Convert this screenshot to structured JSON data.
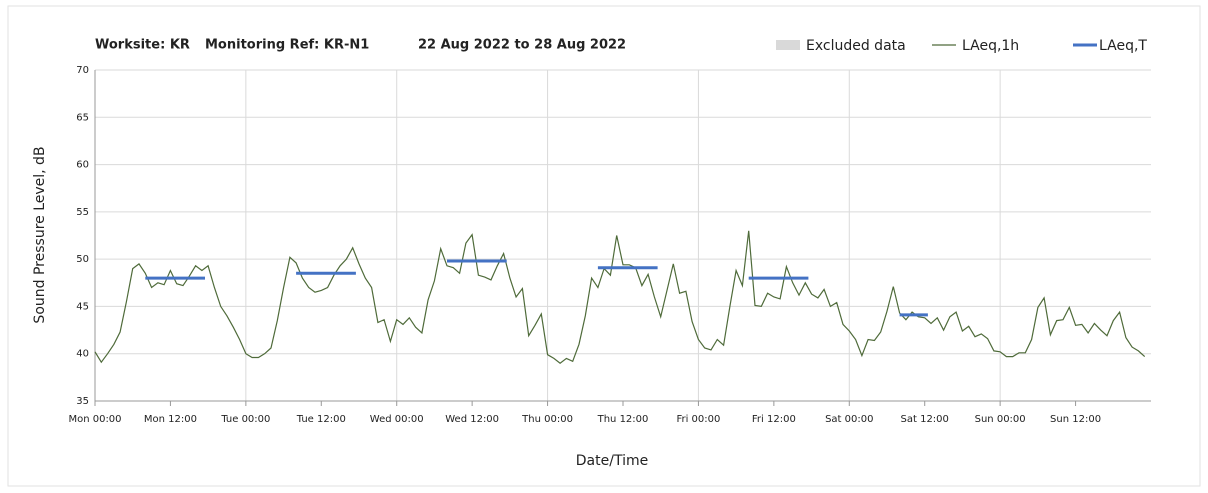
{
  "chart_data": {
    "type": "line",
    "title": [
      "Worksite: KR",
      "Monitoring Ref: KR-N1",
      "22 Aug 2022 to 28 Aug 2022"
    ],
    "ylabel": "Sound Pressure Level, dB",
    "xlabel": "Date/Time",
    "xlim": [
      0,
      168
    ],
    "ylim": [
      35,
      70
    ],
    "yticks": [
      35,
      40,
      45,
      50,
      55,
      60,
      65,
      70
    ],
    "xticks": [
      {
        "value": 0,
        "label": "Mon 00:00"
      },
      {
        "value": 12,
        "label": "Mon 12:00"
      },
      {
        "value": 24,
        "label": "Tue 00:00"
      },
      {
        "value": 36,
        "label": "Tue 12:00"
      },
      {
        "value": 48,
        "label": "Wed 00:00"
      },
      {
        "value": 60,
        "label": "Wed 12:00"
      },
      {
        "value": 72,
        "label": "Thu 00:00"
      },
      {
        "value": 84,
        "label": "Thu 12:00"
      },
      {
        "value": 96,
        "label": "Fri 00:00"
      },
      {
        "value": 108,
        "label": "Fri 12:00"
      },
      {
        "value": 120,
        "label": "Sat 00:00"
      },
      {
        "value": 132,
        "label": "Sat 12:00"
      },
      {
        "value": 144,
        "label": "Sun 00:00"
      },
      {
        "value": 156,
        "label": "Sun 12:00"
      }
    ],
    "grid": true,
    "series": [
      {
        "name": "Excluded data",
        "color": "#d9d9d9",
        "x": [],
        "values": []
      },
      {
        "name": "LAeq,1h",
        "color": "#4f6b3a",
        "x": [
          0,
          1,
          2,
          3,
          4,
          5,
          6,
          7,
          8,
          9,
          10,
          11,
          12,
          13,
          14,
          15,
          16,
          17,
          18,
          19,
          20,
          21,
          22,
          23,
          24,
          25,
          26,
          27,
          28,
          29,
          30,
          31,
          32,
          33,
          34,
          35,
          36,
          37,
          38,
          39,
          40,
          41,
          42,
          43,
          44,
          45,
          46,
          47,
          48,
          49,
          50,
          51,
          52,
          53,
          54,
          55,
          56,
          57,
          58,
          59,
          60,
          61,
          62,
          63,
          64,
          65,
          66,
          67,
          68,
          69,
          70,
          71,
          72,
          73,
          74,
          75,
          76,
          77,
          78,
          79,
          80,
          81,
          82,
          83,
          84,
          85,
          86,
          87,
          88,
          89,
          90,
          91,
          92,
          93,
          94,
          95,
          96,
          97,
          98,
          99,
          100,
          101,
          102,
          103,
          104,
          105,
          106,
          107,
          108,
          109,
          110,
          111,
          112,
          113,
          114,
          115,
          116,
          117,
          118,
          119,
          120,
          121,
          122,
          123,
          124,
          125,
          126,
          127,
          128,
          129,
          130,
          131,
          132,
          133,
          134,
          135,
          136,
          137,
          138,
          139,
          140,
          141,
          142,
          143,
          144,
          145,
          146,
          147,
          148,
          149,
          150,
          151,
          152,
          153,
          154,
          155,
          156,
          157,
          158,
          159,
          160,
          161,
          162,
          163,
          164,
          165,
          166,
          167
        ],
        "values": [
          40.2,
          39.1,
          40,
          41,
          42.3,
          45.5,
          49,
          49.5,
          48.5,
          47,
          47.5,
          47.3,
          48.8,
          47.4,
          47.2,
          48.2,
          49.3,
          48.8,
          49.3,
          47,
          45,
          44,
          42.8,
          41.5,
          40,
          39.6,
          39.6,
          40,
          40.6,
          43.5,
          47,
          50.2,
          49.6,
          48,
          47,
          46.5,
          46.7,
          47,
          48.3,
          49.3,
          50,
          51.2,
          49.5,
          48,
          47,
          43.3,
          43.6,
          41.3,
          43.6,
          43.1,
          43.8,
          42.8,
          42.2,
          45.7,
          47.7,
          51.1,
          49.3,
          49.1,
          48.5,
          51.7,
          52.6,
          48.3,
          48.1,
          47.8,
          49.3,
          50.6,
          48,
          46,
          46.9,
          41.9,
          43,
          44.2,
          39.9,
          39.5,
          39,
          39.5,
          39.2,
          41,
          44,
          48,
          47,
          49,
          48.3,
          52.5,
          49.4,
          49.4,
          49.1,
          47.2,
          48.4,
          46,
          43.9,
          46.7,
          49.5,
          46.4,
          46.6,
          43.4,
          41.5,
          40.6,
          40.4,
          41.5,
          40.9,
          45,
          48.8,
          47.2,
          53,
          45.1,
          45,
          46.4,
          46,
          45.8,
          49.2,
          47.5,
          46.2,
          47.5,
          46.3,
          45.9,
          46.8,
          45,
          45.4,
          43.1,
          42.4,
          41.5,
          39.8,
          41.5,
          41.4,
          42.3,
          44.5,
          47.1,
          44.3,
          43.6,
          44.4,
          43.9,
          43.8,
          43.2,
          43.8,
          42.5,
          43.9,
          44.4,
          42.4,
          42.9,
          41.8,
          42.1,
          41.6,
          40.3,
          40.2,
          39.7,
          39.7,
          40.1,
          40.1,
          41.5,
          44.9,
          45.9,
          42,
          43.5,
          43.6,
          44.9,
          43,
          43.1,
          42.2,
          43.2,
          42.5,
          41.9,
          43.5,
          44.4,
          41.7,
          40.7,
          40.3,
          39.7
        ]
      },
      {
        "name": "LAeq,T",
        "color": "#4472c4",
        "x": [
          8,
          17.5,
          null,
          32,
          41.5,
          null,
          56,
          65.5,
          null,
          80,
          89.5,
          null,
          104,
          113.5,
          null,
          128,
          132.5
        ],
        "values": [
          48,
          48,
          null,
          48.5,
          48.5,
          null,
          49.8,
          49.8,
          null,
          49.1,
          49.1,
          null,
          48,
          48,
          null,
          44.1,
          44.1
        ]
      }
    ]
  }
}
